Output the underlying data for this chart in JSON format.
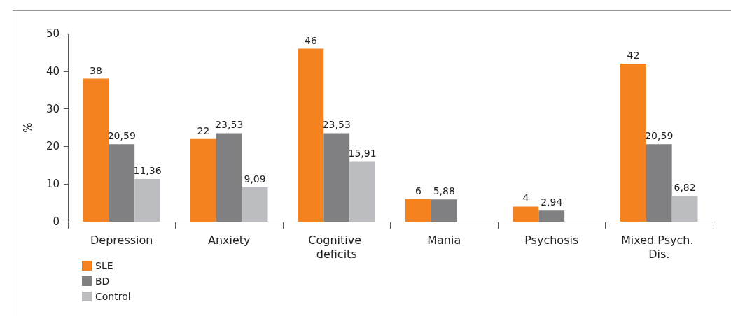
{
  "chart_data": {
    "type": "bar",
    "ylabel": "%",
    "categories": [
      "Depression",
      "Anxiety",
      "Cognitive deficits",
      "Mania",
      "Psychosis",
      "Mixed Psych. Dis."
    ],
    "series": [
      {
        "name": "SLE",
        "color": "#f4821f",
        "values": [
          38,
          22,
          46,
          6,
          4,
          42
        ],
        "value_labels": [
          "38",
          "22",
          "46",
          "6",
          "4",
          "42"
        ]
      },
      {
        "name": "BD",
        "color": "#808083",
        "values": [
          20.59,
          23.53,
          23.53,
          5.88,
          2.94,
          20.59
        ],
        "value_labels": [
          "20,59",
          "23,53",
          "23,53",
          "5,88",
          "2,94",
          "20,59"
        ]
      },
      {
        "name": "Control",
        "color": "#bcbdc0",
        "values": [
          11.36,
          9.09,
          15.91,
          null,
          null,
          6.82
        ],
        "value_labels": [
          "11,36",
          "9,09",
          "15,91",
          null,
          null,
          "6,82"
        ]
      }
    ],
    "ylim": [
      0,
      50
    ],
    "yticks": [
      0,
      10,
      20,
      30,
      40,
      50
    ],
    "grid": false,
    "legend": "bottom left"
  }
}
